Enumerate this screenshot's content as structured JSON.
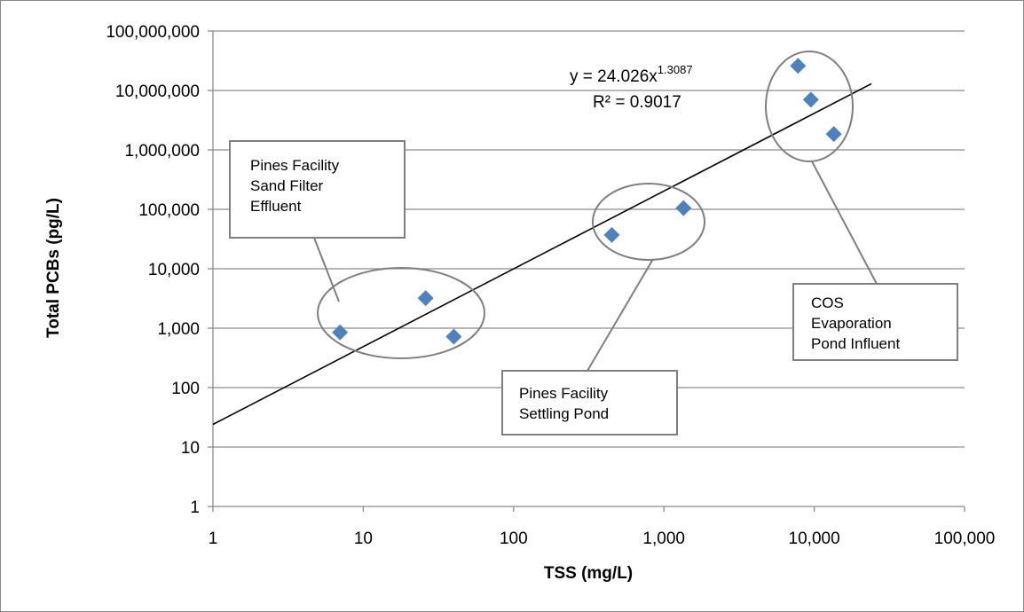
{
  "chart_data": {
    "type": "scatter",
    "xlabel": "TSS (mg/L)",
    "ylabel": "Total PCBs (pg/L)",
    "xscale": "log",
    "yscale": "log",
    "xlim": [
      1,
      100000
    ],
    "ylim": [
      1,
      100000000
    ],
    "grid": "horizontal",
    "x_ticks": [
      1,
      10,
      100,
      1000,
      10000,
      100000
    ],
    "x_tick_labels": [
      "1",
      "10",
      "100",
      "1,000",
      "10,000",
      "100,000"
    ],
    "y_ticks": [
      1,
      10,
      100,
      1000,
      10000,
      100000,
      1000000,
      10000000,
      100000000
    ],
    "y_tick_labels": [
      "1",
      "10",
      "100",
      "1,000",
      "10,000",
      "100,000",
      "1,000,000",
      "10,000,000",
      "100,000,000"
    ],
    "marker_color": "#4f81bd",
    "points": [
      {
        "x": 7,
        "y": 850
      },
      {
        "x": 26,
        "y": 3200
      },
      {
        "x": 40,
        "y": 720
      },
      {
        "x": 450,
        "y": 37000
      },
      {
        "x": 1350,
        "y": 105000
      },
      {
        "x": 7800,
        "y": 26000000
      },
      {
        "x": 9500,
        "y": 7000000
      },
      {
        "x": 13500,
        "y": 1850000
      }
    ],
    "trendline": {
      "type": "power",
      "coefficient": 24.026,
      "exponent": 1.3087,
      "x_range": [
        1,
        24000
      ],
      "color": "#000000",
      "equation_prefix": "y = 24.026x",
      "equation_exponent": "1.3087",
      "r_squared_label": "R² = 0.9017"
    },
    "annotations": [
      {
        "lines": [
          "Pines Facility",
          "Sand Filter",
          "Effluent"
        ]
      },
      {
        "lines": [
          "Pines Facility",
          "Settling Pond"
        ]
      },
      {
        "lines": [
          "COS",
          "Evaporation",
          "Pond Influent"
        ]
      }
    ]
  }
}
